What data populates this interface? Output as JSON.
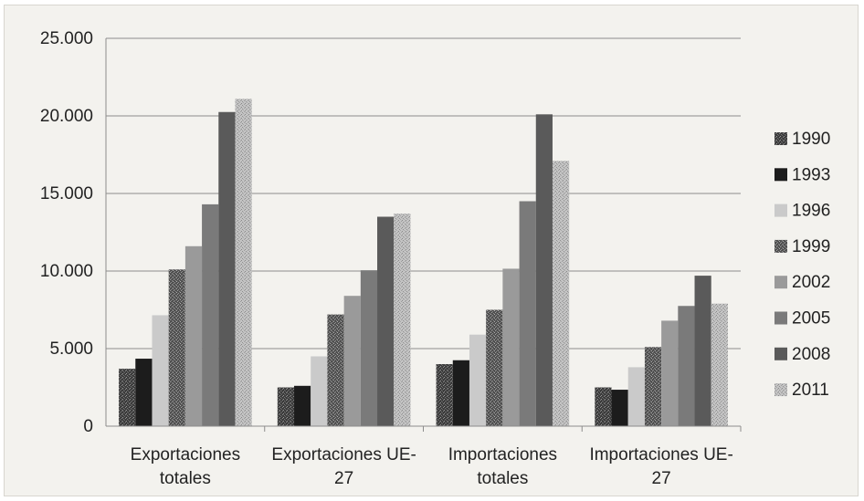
{
  "chart_data": {
    "type": "bar",
    "categories": [
      [
        "Exportaciones",
        "totales"
      ],
      [
        "Exportaciones UE-",
        "27"
      ],
      [
        "Importaciones",
        "totales"
      ],
      [
        "Importaciones UE-",
        "27"
      ]
    ],
    "series": [
      {
        "name": "1990",
        "values": [
          3700,
          2500,
          4000,
          2500
        ],
        "color": "#4a4a4a",
        "pattern": "speckle-dark"
      },
      {
        "name": "1993",
        "values": [
          4350,
          2600,
          4250,
          2350
        ],
        "color": "#1c1c1c",
        "pattern": "solid"
      },
      {
        "name": "1996",
        "values": [
          7150,
          4500,
          5900,
          3800
        ],
        "color": "#cacaca",
        "pattern": "solid"
      },
      {
        "name": "1999",
        "values": [
          10100,
          7200,
          7500,
          5100
        ],
        "color": "#555555",
        "pattern": "speckle-mid"
      },
      {
        "name": "2002",
        "values": [
          11600,
          8400,
          10150,
          6800
        ],
        "color": "#9a9a9a",
        "pattern": "solid"
      },
      {
        "name": "2005",
        "values": [
          14300,
          10050,
          14500,
          7750
        ],
        "color": "#7a7a7a",
        "pattern": "solid"
      },
      {
        "name": "2008",
        "values": [
          20250,
          13500,
          20100,
          9700
        ],
        "color": "#5a5a5a",
        "pattern": "solid"
      },
      {
        "name": "2011",
        "values": [
          21100,
          13700,
          17100,
          7900
        ],
        "color": "#b5b5b5",
        "pattern": "speckle-light"
      }
    ],
    "yticks": [
      "0",
      "5.000",
      "10.000",
      "15.000",
      "20.000",
      "25.000"
    ],
    "ylim": [
      0,
      25000
    ],
    "grid": true,
    "legend": "right",
    "title": "",
    "xlabel": "",
    "ylabel": ""
  }
}
